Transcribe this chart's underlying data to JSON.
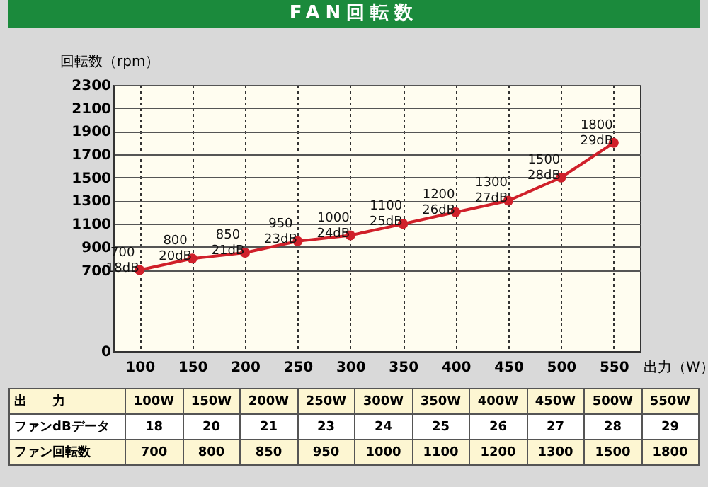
{
  "chart_data": {
    "type": "line",
    "title": "FAN回転数",
    "ylabel": "回転数（rpm）",
    "xlabel": "出力（W）",
    "categories": [
      "100",
      "150",
      "200",
      "250",
      "300",
      "350",
      "400",
      "450",
      "500",
      "550"
    ],
    "series": [
      {
        "color": "#d0202a",
        "values": [
          700,
          800,
          850,
          950,
          1000,
          1100,
          1200,
          1300,
          1500,
          1800
        ]
      }
    ],
    "value_labels": [
      "700\n18dB",
      "800\n20dB",
      "850\n21dB",
      "950\n23dB",
      "1000\n24dB",
      "1100\n25dB",
      "1200\n26dB",
      "1300\n27dB",
      "1500\n28dB",
      "1800\n29dB"
    ],
    "ylim": [
      0,
      2300
    ],
    "yticks": [
      0,
      700,
      900,
      1100,
      1300,
      1500,
      1700,
      1900,
      2100,
      2300
    ],
    "grid": true,
    "marker": "circle",
    "line_style": "solid",
    "annotations": [
      "出　　力",
      "100W",
      "150W",
      "200W",
      "250W",
      "300W",
      "350W",
      "400W",
      "450W",
      "500W",
      "550W",
      "ファンdBデータ",
      "18",
      "20",
      "21",
      "23",
      "24",
      "25",
      "26",
      "27",
      "28",
      "29",
      "ファン回転数",
      "700",
      "800",
      "850",
      "950",
      "1000",
      "1100",
      "1200",
      "1300",
      "1500",
      "1800"
    ]
  }
}
